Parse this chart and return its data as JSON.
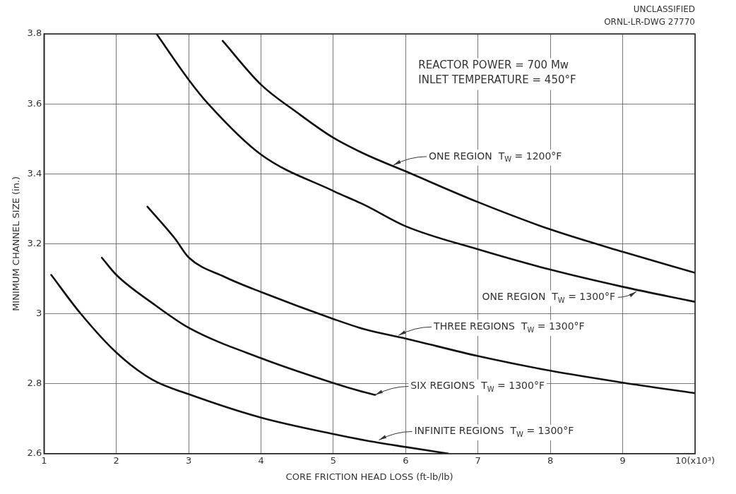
{
  "chart_data": {
    "type": "line",
    "xlabel": "CORE FRICTION HEAD LOSS (ft-lb/lb)",
    "ylabel": "MINIMUM CHANNEL SIZE (in.)",
    "xlim": [
      1,
      10
    ],
    "xticks": [
      1,
      2,
      3,
      4,
      5,
      6,
      7,
      8,
      9,
      {
        "value": 10,
        "label": "10(x10³)"
      }
    ],
    "ylim": [
      2.6,
      3.8
    ],
    "yticks": [
      2.6,
      2.8,
      3.0,
      3.2,
      3.4,
      3.6,
      3.8
    ],
    "grid": true,
    "legend": false,
    "marker": "none",
    "line_style": "solid",
    "series": [
      {
        "color": "#111111",
        "x": [
          3.47,
          4,
          4.5,
          5,
          5.44,
          6,
          7,
          8,
          9,
          10
        ],
        "values": [
          3.78,
          3.655,
          3.575,
          3.503,
          3.456,
          3.407,
          3.319,
          3.241,
          3.177,
          3.117
        ]
      },
      {
        "color": "#111111",
        "x": [
          2.556,
          3,
          3.27,
          4,
          5,
          5.44,
          6,
          7,
          8,
          9,
          10
        ],
        "values": [
          3.8,
          3.669,
          3.6,
          3.455,
          3.351,
          3.31,
          3.25,
          3.184,
          3.126,
          3.077,
          3.034
        ]
      },
      {
        "color": "#111111",
        "x": [
          2.43,
          2.81,
          3,
          3.5,
          4,
          5,
          5.44,
          6,
          7,
          8,
          9,
          10
        ],
        "values": [
          3.306,
          3.215,
          3.161,
          3.105,
          3.062,
          2.985,
          2.955,
          2.929,
          2.879,
          2.837,
          2.803,
          2.773
        ]
      },
      {
        "color": "#111111",
        "x": [
          1.8,
          2,
          2.5,
          3,
          4,
          5,
          5.44,
          5.58
        ],
        "values": [
          3.16,
          3.111,
          3.03,
          2.96,
          2.873,
          2.802,
          2.775,
          2.768
        ]
      },
      {
        "color": "#111111",
        "x": [
          1.1,
          1.5,
          2,
          2.5,
          3,
          4,
          5,
          5.44,
          6,
          6.59
        ],
        "values": [
          3.111,
          3.002,
          2.889,
          2.811,
          2.77,
          2.703,
          2.656,
          2.638,
          2.619,
          2.6
        ]
      }
    ],
    "annotations": [
      "UNCLASSIFIED",
      "ORNL-LR-DWG 27770",
      "REACTOR POWER = 700 Mw",
      "INLET TEMPERATURE = 450°F",
      {
        "text": "ONE REGION  T$_{W}$ = 1200°F",
        "x": 5.83,
        "y": 3.425
      },
      {
        "text": "ONE REGION  T$_{W}$ = 1300°F",
        "x": 9.19,
        "y": 3.063
      },
      {
        "text": "THREE REGIONS  T$_{W}$ = 1300°F",
        "x": 5.9,
        "y": 2.938
      },
      {
        "text": "SIX REGIONS  T$_{W}$ = 1300°F",
        "x": 5.58,
        "y": 2.768
      },
      {
        "text": "INFINITE REGIONS  T$_{W}$ = 1300°F",
        "x": 5.63,
        "y": 2.639
      }
    ]
  }
}
